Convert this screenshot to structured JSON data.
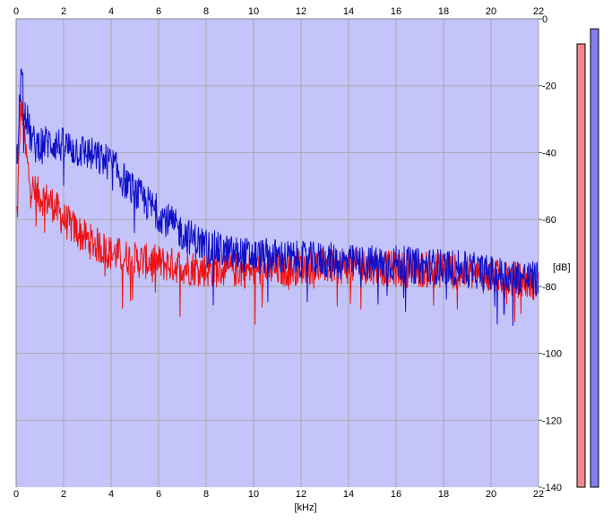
{
  "chart_data": {
    "type": "area",
    "xlabel": "[kHz]",
    "ylabel": "[dB]",
    "xlim": [
      0,
      22
    ],
    "ylim": [
      -140,
      0
    ],
    "x_ticks": [
      "0",
      "2",
      "4",
      "6",
      "8",
      "10",
      "12",
      "14",
      "16",
      "18",
      "20",
      "22"
    ],
    "y_ticks": [
      "0",
      "-20",
      "-40",
      "-60",
      "-80",
      "-100",
      "-120",
      "-140"
    ],
    "grid": true,
    "colors": {
      "fill": "#c4c4fa",
      "grid": "#a9a9a9",
      "red": "#ee1111",
      "blue": "#1010c8",
      "meter_left": "#f08a8a",
      "meter_right": "#8080ee"
    },
    "series": [
      {
        "color": "red",
        "x": [
          0.05,
          0.2,
          0.4,
          0.6,
          0.8,
          1,
          1.5,
          2,
          2.5,
          3,
          3.5,
          4,
          5,
          6,
          7,
          8,
          9,
          10,
          11,
          12,
          13,
          14,
          15,
          16,
          17,
          18,
          19,
          20,
          21,
          22
        ],
        "y": [
          -58,
          -25,
          -40,
          -50,
          -52,
          -53,
          -55,
          -60,
          -63,
          -66,
          -68,
          -70,
          -72,
          -73,
          -74,
          -75,
          -75,
          -75,
          -75,
          -74,
          -74,
          -74,
          -74,
          -75,
          -75,
          -75,
          -76,
          -77,
          -78,
          -79
        ]
      },
      {
        "color": "blue",
        "x": [
          0.05,
          0.2,
          0.4,
          0.6,
          0.8,
          1,
          1.5,
          2,
          2.5,
          3,
          3.5,
          4,
          4.5,
          5,
          5.5,
          6,
          6.5,
          7,
          8,
          9,
          10,
          11,
          12,
          13,
          14,
          15,
          16,
          17,
          18,
          19,
          20,
          21,
          22
        ],
        "y": [
          -42,
          -17,
          -28,
          -35,
          -38,
          -37,
          -37,
          -38,
          -39,
          -40,
          -42,
          -43,
          -48,
          -52,
          -55,
          -58,
          -61,
          -64,
          -68,
          -70,
          -71,
          -71,
          -72,
          -72,
          -73,
          -73,
          -73,
          -74,
          -74,
          -75,
          -76,
          -77,
          -78
        ]
      }
    ],
    "meters": [
      {
        "channel": "left",
        "level_db": -7.5
      },
      {
        "channel": "right",
        "level_db": -3
      }
    ]
  }
}
